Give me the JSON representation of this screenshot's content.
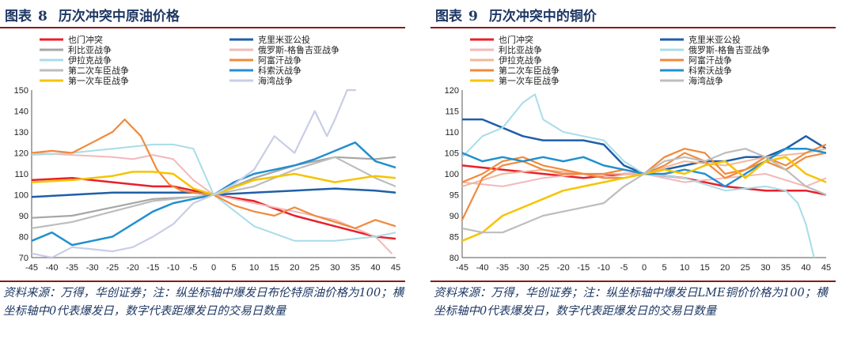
{
  "charts": [
    {
      "title_prefix": "图表",
      "title_number": "8",
      "title_text": "历次冲突中原油价格",
      "source": "资料来源：万得，华创证券；注：纵坐标轴中爆发日布伦特原油价格为100；横坐标轴中0代表爆发日，数字代表距爆发日的交易日数量"
    },
    {
      "title_prefix": "图表",
      "title_number": "9",
      "title_text": "历次冲突中的铜价",
      "source": "资料来源：万得，华创证券；注：纵坐标轴中爆发日LME铜价价格为100；横坐标轴中0代表爆发日，数字代表距爆发日的交易日数量"
    }
  ],
  "chart_data": [
    {
      "type": "line",
      "title": "历次冲突中原油价格",
      "xlabel": "",
      "ylabel": "",
      "x_ticks": [
        -45,
        -40,
        -35,
        -30,
        -25,
        -20,
        -15,
        -10,
        -5,
        0,
        5,
        10,
        15,
        20,
        25,
        30,
        35,
        40,
        45
      ],
      "xlim": [
        -45,
        45
      ],
      "ylim": [
        70,
        150
      ],
      "y_ticks": [
        70,
        80,
        90,
        100,
        110,
        120,
        130,
        140,
        150
      ],
      "legend_position": "top",
      "series": [
        {
          "name": "也门冲突",
          "color": "#e8202a",
          "width": 2.5,
          "x": [
            -45,
            -35,
            -25,
            -15,
            -10,
            -5,
            0,
            10,
            20,
            30,
            40,
            45
          ],
          "y": [
            107,
            108,
            106,
            104,
            104,
            102,
            100,
            97,
            90,
            85,
            80,
            79
          ]
        },
        {
          "name": "克里米亚公投",
          "color": "#1f5fa8",
          "width": 2.5,
          "x": [
            -45,
            -35,
            -25,
            -15,
            -5,
            0,
            10,
            20,
            30,
            40,
            45
          ],
          "y": [
            99,
            100,
            101,
            101,
            101,
            100,
            101,
            102,
            103,
            102,
            101
          ]
        },
        {
          "name": "利比亚战争",
          "color": "#a6a6a6",
          "width": 2.2,
          "x": [
            -45,
            -35,
            -25,
            -15,
            -5,
            0,
            10,
            20,
            30,
            40,
            45
          ],
          "y": [
            89,
            90,
            94,
            98,
            99,
            100,
            108,
            114,
            118,
            117,
            118
          ]
        },
        {
          "name": "俄罗斯-格鲁吉亚战争",
          "color": "#f2b8b8",
          "width": 2,
          "x": [
            -45,
            -35,
            -25,
            -20,
            -15,
            -10,
            -5,
            0,
            5,
            10,
            20,
            30,
            40,
            44
          ],
          "y": [
            120,
            119,
            118,
            117,
            119,
            117,
            107,
            100,
            98,
            96,
            92,
            88,
            80,
            72
          ]
        },
        {
          "name": "伊拉克战争",
          "color": "#a9dce8",
          "width": 2,
          "x": [
            -45,
            -35,
            -25,
            -15,
            -10,
            -5,
            0,
            10,
            20,
            30,
            40,
            45
          ],
          "y": [
            119,
            120,
            122,
            124,
            124,
            122,
            100,
            85,
            78,
            78,
            80,
            82
          ]
        },
        {
          "name": "阿富汗战争",
          "color": "#f08a3c",
          "width": 2.2,
          "x": [
            -45,
            -40,
            -35,
            -30,
            -25,
            -22,
            -18,
            -14,
            -11,
            -8,
            -5,
            0,
            5,
            10,
            15,
            20,
            25,
            30,
            35,
            40,
            45
          ],
          "y": [
            120,
            121,
            120,
            125,
            130,
            136,
            128,
            112,
            105,
            102,
            101,
            100,
            95,
            92,
            90,
            94,
            90,
            87,
            84,
            88,
            85
          ]
        },
        {
          "name": "第二次车臣战争",
          "color": "#bdbdbd",
          "width": 2.2,
          "x": [
            -45,
            -35,
            -25,
            -15,
            -5,
            0,
            10,
            20,
            30,
            40,
            45
          ],
          "y": [
            84,
            87,
            92,
            97,
            99,
            100,
            104,
            112,
            118,
            108,
            104
          ]
        },
        {
          "name": "科索沃战争",
          "color": "#2190cf",
          "width": 2.5,
          "x": [
            -45,
            -40,
            -35,
            -30,
            -25,
            -20,
            -15,
            -10,
            -5,
            0,
            5,
            10,
            15,
            20,
            25,
            30,
            35,
            40,
            45
          ],
          "y": [
            78,
            82,
            76,
            78,
            80,
            86,
            92,
            96,
            98,
            100,
            106,
            110,
            112,
            114,
            117,
            121,
            125,
            116,
            113
          ]
        },
        {
          "name": "第一次车臣战争",
          "color": "#f5c400",
          "width": 2.5,
          "x": [
            -45,
            -35,
            -25,
            -20,
            -15,
            -10,
            -5,
            0,
            10,
            20,
            30,
            40,
            45
          ],
          "y": [
            106,
            107,
            109,
            111,
            111,
            110,
            103,
            100,
            107,
            110,
            106,
            109,
            108
          ]
        },
        {
          "name": "海湾战争",
          "color": "#c9cde6",
          "width": 2.2,
          "x": [
            -45,
            -40,
            -35,
            -30,
            -25,
            -20,
            -15,
            -10,
            -5,
            0,
            5,
            10,
            15,
            20,
            25,
            28,
            30,
            33,
            35
          ],
          "y": [
            72,
            70,
            75,
            74,
            73,
            75,
            80,
            86,
            96,
            100,
            105,
            112,
            128,
            120,
            140,
            128,
            136,
            150,
            150
          ]
        }
      ]
    },
    {
      "type": "line",
      "title": "历次冲突中的铜价",
      "xlabel": "",
      "ylabel": "",
      "x_ticks": [
        -45,
        -40,
        -35,
        -30,
        -25,
        -20,
        -15,
        -10,
        -5,
        0,
        5,
        10,
        15,
        20,
        25,
        30,
        35,
        40,
        45
      ],
      "xlim": [
        -45,
        45
      ],
      "ylim": [
        80,
        120
      ],
      "y_ticks": [
        80,
        85,
        90,
        95,
        100,
        105,
        110,
        115,
        120
      ],
      "legend_position": "top",
      "series": [
        {
          "name": "也门冲突",
          "color": "#e8202a",
          "width": 2.5,
          "x": [
            -45,
            -35,
            -25,
            -15,
            -5,
            0,
            10,
            20,
            30,
            40,
            45
          ],
          "y": [
            102,
            101,
            100,
            99,
            100,
            100,
            99,
            97,
            96,
            96,
            95
          ]
        },
        {
          "name": "克里米亚公投",
          "color": "#1f5fa8",
          "width": 2.5,
          "x": [
            -45,
            -40,
            -35,
            -30,
            -25,
            -20,
            -15,
            -10,
            -5,
            0,
            5,
            10,
            15,
            20,
            25,
            30,
            35,
            40,
            45
          ],
          "y": [
            113,
            113,
            111,
            109,
            108,
            108,
            108,
            107,
            102,
            100,
            101,
            102,
            103,
            103,
            104,
            104,
            106,
            109,
            106
          ]
        },
        {
          "name": "利比亚战争",
          "color": "#f2b8b8",
          "width": 2,
          "x": [
            -45,
            -35,
            -25,
            -15,
            -5,
            0,
            10,
            20,
            30,
            40,
            45
          ],
          "y": [
            98,
            97,
            99,
            100,
            99,
            100,
            98,
            99,
            100,
            97,
            99
          ]
        },
        {
          "name": "俄罗斯-格鲁吉亚战争",
          "color": "#a9dce8",
          "width": 2,
          "x": [
            -45,
            -40,
            -35,
            -30,
            -27,
            -25,
            -20,
            -15,
            -10,
            -5,
            0,
            10,
            20,
            30,
            35,
            38,
            40,
            42
          ],
          "y": [
            104,
            109,
            111,
            117,
            119,
            113,
            110,
            109,
            108,
            103,
            100,
            99,
            96,
            97,
            96,
            93,
            88,
            80
          ]
        },
        {
          "name": "伊拉克战争",
          "color": "#f0b89a",
          "width": 2,
          "x": [
            -45,
            -35,
            -25,
            -15,
            -5,
            0,
            10,
            20,
            30,
            40,
            45
          ],
          "y": [
            97,
            100,
            101,
            100,
            100,
            100,
            103,
            102,
            104,
            105,
            106
          ]
        },
        {
          "name": "阿富汗战争",
          "color": "#f08a3c",
          "width": 2.2,
          "x": [
            -45,
            -40,
            -35,
            -30,
            -25,
            -20,
            -15,
            -10,
            -5,
            0,
            5,
            10,
            15,
            20,
            25,
            30,
            35,
            40,
            45
          ],
          "y": [
            89,
            99,
            102,
            103,
            101,
            100,
            100,
            99,
            99,
            100,
            104,
            106,
            105,
            100,
            101,
            104,
            102,
            105,
            107
          ]
        },
        {
          "name": "第二次车臣战争",
          "color": "#f08a3c",
          "width": 2.2,
          "x": [
            -45,
            -40,
            -35,
            -30,
            -25,
            -20,
            -15,
            -10,
            -5,
            0,
            5,
            10,
            15,
            20,
            25,
            30,
            35,
            40,
            45
          ],
          "y": [
            98,
            100,
            103,
            104,
            102,
            101,
            100,
            100,
            101,
            100,
            102,
            105,
            103,
            99,
            101,
            103,
            101,
            104,
            105
          ]
        },
        {
          "name": "科索沃战争",
          "color": "#2190cf",
          "width": 2.5,
          "x": [
            -45,
            -40,
            -35,
            -30,
            -25,
            -20,
            -15,
            -10,
            -5,
            0,
            5,
            10,
            15,
            20,
            25,
            30,
            35,
            40,
            45
          ],
          "y": [
            105,
            103,
            104,
            103,
            104,
            103,
            104,
            102,
            101,
            100,
            100,
            101,
            100,
            97,
            100,
            103,
            106,
            106,
            105
          ]
        },
        {
          "name": "第一次车臣战争",
          "color": "#f5c400",
          "width": 2.5,
          "x": [
            -45,
            -40,
            -35,
            -30,
            -25,
            -20,
            -15,
            -10,
            -5,
            0,
            5,
            10,
            15,
            20,
            25,
            30,
            35,
            40,
            45
          ],
          "y": [
            84,
            86,
            90,
            92,
            94,
            96,
            97,
            98,
            99,
            100,
            101,
            100,
            102,
            103,
            99,
            103,
            104,
            100,
            98
          ]
        },
        {
          "name": "海湾战争",
          "color": "#bdbdbd",
          "width": 2.2,
          "x": [
            -45,
            -40,
            -35,
            -30,
            -25,
            -20,
            -15,
            -10,
            -5,
            0,
            5,
            10,
            15,
            20,
            25,
            30,
            35,
            40,
            45
          ],
          "y": [
            87,
            86,
            86,
            88,
            90,
            91,
            92,
            93,
            97,
            100,
            103,
            104,
            103,
            105,
            106,
            104,
            101,
            97,
            95
          ]
        }
      ]
    }
  ]
}
